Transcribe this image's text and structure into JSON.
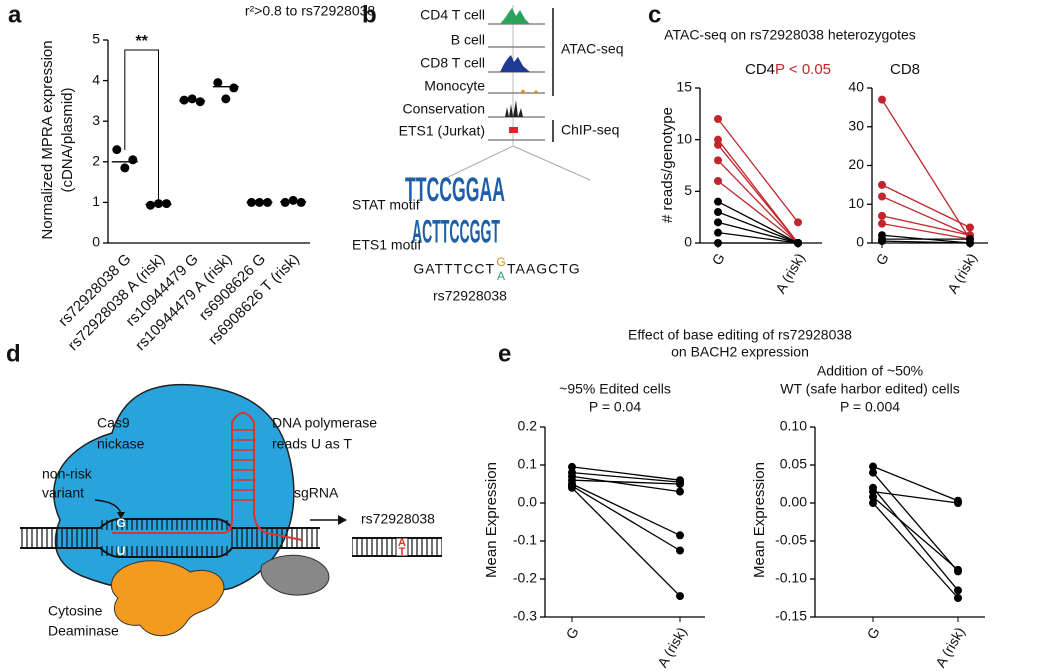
{
  "panel_labels": [
    "a",
    "b",
    "c",
    "d",
    "e"
  ],
  "chart_data": [
    {
      "type": "dot",
      "annotation_top": "r²>0.8 to rs72928038",
      "significance": "**",
      "ylabel": [
        "Normalized MPRA expression",
        "(cDNA/plasmid)"
      ],
      "categories": [
        "rs72928038 G",
        "rs72928038 A (risk)",
        "rs10944479 G",
        "rs10944479 A (risk)",
        "rs6908626 G",
        "rs6908626 T (risk)"
      ],
      "values": [
        [
          2.3,
          1.85,
          2.05
        ],
        [
          0.93,
          0.97,
          0.97
        ],
        [
          3.52,
          3.55,
          3.48
        ],
        [
          3.95,
          3.55,
          3.82
        ],
        [
          1.0,
          1.0,
          1.0
        ],
        [
          1.0,
          1.05,
          1.0
        ]
      ],
      "means": [
        2.0,
        0.95,
        3.5,
        3.85,
        1.0,
        1.02
      ],
      "color": "#000000",
      "ylim": [
        0,
        5
      ],
      "yticks": [
        0,
        1,
        2,
        3,
        4,
        5
      ]
    },
    {
      "type": "paired",
      "title": "CD4",
      "ylabel": "# reads/genotype",
      "categories": [
        "G",
        "A (risk)"
      ],
      "groups": [
        {
          "color": "#c0272d",
          "pairs": [
            [
              12,
              2
            ],
            [
              10,
              0
            ],
            [
              9.5,
              0
            ],
            [
              8,
              0
            ],
            [
              6,
              0
            ]
          ]
        },
        {
          "color": "#000000",
          "pairs": [
            [
              4,
              0
            ],
            [
              3,
              0
            ],
            [
              2,
              0
            ],
            [
              1,
              0
            ],
            [
              0,
              0
            ]
          ]
        }
      ],
      "ylim": [
        0,
        15
      ],
      "yticks": [
        0,
        5,
        10,
        15
      ]
    },
    {
      "type": "paired",
      "title": "CD8",
      "categories": [
        "G",
        "A (risk)"
      ],
      "groups": [
        {
          "color": "#c0272d",
          "pairs": [
            [
              37,
              1
            ],
            [
              15,
              4
            ],
            [
              12,
              2
            ],
            [
              7,
              2
            ],
            [
              5,
              1
            ]
          ]
        },
        {
          "color": "#000000",
          "pairs": [
            [
              2,
              0
            ],
            [
              1,
              1
            ],
            [
              0.5,
              0
            ]
          ]
        }
      ],
      "ylim": [
        0,
        40
      ],
      "yticks": [
        0,
        10,
        20,
        30,
        40
      ]
    },
    {
      "type": "paired",
      "subtitle": [
        "~95% Edited cells"
      ],
      "annotation": "P = 0.04",
      "ylabel": "Mean Expression",
      "categories": [
        "G",
        "A (risk)"
      ],
      "groups": [
        {
          "color": "#000000",
          "pairs": [
            [
              0.095,
              0.06
            ],
            [
              0.08,
              0.055
            ],
            [
              0.07,
              0.03
            ],
            [
              0.06,
              0.05
            ],
            [
              0.05,
              -0.085
            ],
            [
              0.045,
              -0.125
            ],
            [
              0.04,
              -0.245
            ]
          ]
        }
      ],
      "ylim": [
        -0.3,
        0.2
      ],
      "yticks": [
        -0.3,
        -0.2,
        -0.1,
        {
          "value": 0,
          "label": "0.0"
        },
        0.1,
        0.2
      ]
    },
    {
      "type": "paired",
      "subtitle": [
        "Addition of ~50%",
        "WT (safe harbor edited) cells"
      ],
      "annotation": "P = 0.004",
      "ylabel": "Mean Expression",
      "categories": [
        "G",
        "A (risk)"
      ],
      "groups": [
        {
          "color": "#000000",
          "pairs": [
            [
              0.048,
              0.003
            ],
            [
              0.04,
              -0.09
            ],
            [
              0.02,
              -0.115
            ],
            [
              0.015,
              0.0
            ],
            [
              0.008,
              -0.088
            ],
            [
              0.0,
              -0.125
            ]
          ]
        }
      ],
      "ylim": [
        -0.15,
        0.1
      ],
      "yticks": [
        -0.15,
        {
          "value": -0.1,
          "label": "-0.10"
        },
        -0.05,
        {
          "value": 0,
          "label": "0.00"
        },
        0.05,
        {
          "value": 0.1,
          "label": "0.10"
        }
      ]
    }
  ],
  "panel_b": {
    "tracks": [
      "CD4 T cell",
      "B cell",
      "CD8 T cell",
      "Monocyte",
      "Conservation",
      "ETS1 (Jurkat)"
    ],
    "brackets": [
      "ATAC-seq",
      "ChIP-seq"
    ],
    "motifs": [
      "STAT motif",
      "ETS1 motif"
    ],
    "logos": [
      "TTCCGGAA",
      "ACTTCCGGT"
    ],
    "seq_left": "GATTTCCT",
    "alleles": [
      "G",
      "A"
    ],
    "seq_right": "TAAGCTG",
    "snp": "rs72928038"
  },
  "panel_c": {
    "title": "ATAC-seq on rs72928038 heterozygotes",
    "annotation": "P < 0.05"
  },
  "panel_d": {
    "cas9": [
      "Cas9",
      "nickase"
    ],
    "variant": [
      "non-risk",
      "variant"
    ],
    "polymerase": [
      "DNA polymerase",
      "reads U as T"
    ],
    "sgrna": "sgRNA",
    "snp": "rs72928038",
    "deaminase": [
      "Cytosine",
      "Deaminase"
    ],
    "edit_bases": [
      "G",
      "U"
    ],
    "result_bases": [
      "A",
      "T"
    ]
  },
  "panel_e": {
    "title": [
      "Effect of base editing of rs72928038",
      "on BACH2 expression"
    ]
  }
}
